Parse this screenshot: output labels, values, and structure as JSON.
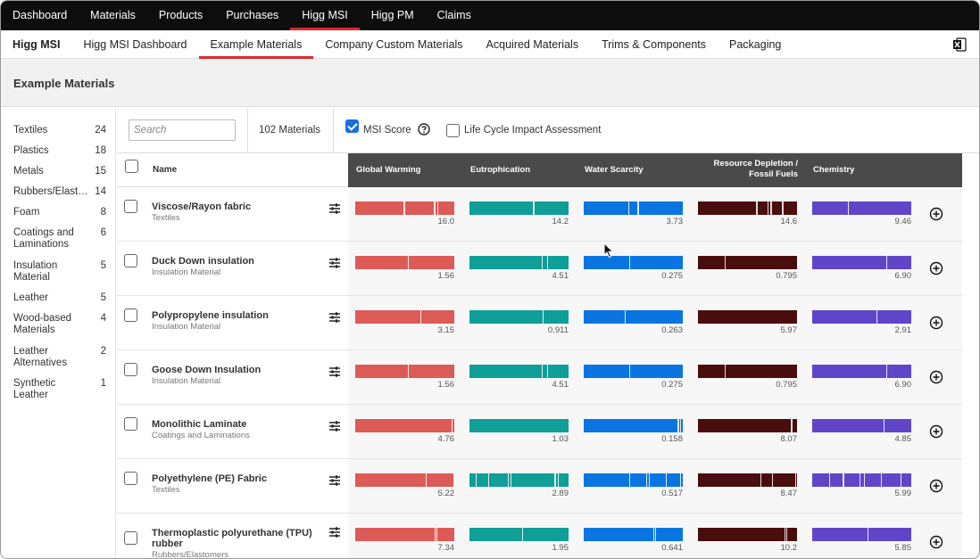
{
  "top_nav": [
    "Dashboard",
    "Materials",
    "Products",
    "Purchases",
    "Higg MSI",
    "Higg PM",
    "Claims"
  ],
  "sub_nav": {
    "brand": "Higg MSI",
    "items": [
      "Higg MSI Dashboard",
      "Example Materials",
      "Company Custom Materials",
      "Acquired Materials",
      "Trims & Components",
      "Packaging"
    ]
  },
  "page_title": "Example Materials",
  "categories": [
    {
      "label": "Textiles",
      "count": "24"
    },
    {
      "label": "Plastics",
      "count": "18"
    },
    {
      "label": "Metals",
      "count": "15"
    },
    {
      "label": "Rubbers/Elastomers",
      "count": "14"
    },
    {
      "label": "Foam",
      "count": "8"
    },
    {
      "label": "Coatings and Laminations",
      "count": "6"
    },
    {
      "label": "Insulation Material",
      "count": "5"
    },
    {
      "label": "Leather",
      "count": "5"
    },
    {
      "label": "Wood-based Materials",
      "count": "4"
    },
    {
      "label": "Leather Alternatives",
      "count": "2"
    },
    {
      "label": "Synthetic Leather",
      "count": "1"
    }
  ],
  "toolbar": {
    "search_placeholder": "Search",
    "material_count": "102 Materials",
    "msi_score_label": "MSI Score",
    "msi_score_checked": true,
    "lca_label": "Life Cycle Impact Assessment",
    "lca_checked": false
  },
  "table": {
    "name_header": "Name",
    "columns": [
      {
        "label": "Global Warming",
        "color": "#dd5b57"
      },
      {
        "label": "Eutrophication",
        "color": "#0f9e98"
      },
      {
        "label": "Water Scarcity",
        "color": "#0a75e0"
      },
      {
        "label": "Resource Depletion / Fossil Fuels",
        "color": "#4a0d0d"
      },
      {
        "label": "Chemistry",
        "color": "#6145c9"
      }
    ],
    "rows": [
      {
        "name": "Viscose/Rayon fabric",
        "category": "Textiles",
        "values": [
          "16.0",
          "14.2",
          "3.73",
          "14.6",
          "9.46"
        ],
        "ticks": [
          [
            0.49,
            0.79,
            0.8,
            0.83
          ],
          [
            0.64,
            0.65
          ],
          [
            0.45,
            0.54,
            0.55
          ],
          [
            0.59,
            0.7,
            0.73,
            0.74,
            0.85
          ],
          [
            0.36
          ]
        ]
      },
      {
        "name": "Duck Down insulation",
        "category": "Insulation Material",
        "values": [
          "1.56",
          "4.51",
          "0.275",
          "0.795",
          "6.90"
        ],
        "ticks": [
          [
            0.53
          ],
          [
            0.73,
            0.78
          ],
          [
            0.46
          ],
          [
            0.27
          ],
          [
            0.75
          ]
        ]
      },
      {
        "name": "Polypropylene insulation",
        "category": "Insulation Material",
        "values": [
          "3.15",
          "0.911",
          "0.263",
          "5.97",
          "2.91"
        ],
        "ticks": [
          [
            0.66
          ],
          [
            0.74
          ],
          [
            0.41
          ],
          [],
          [
            0.65
          ]
        ]
      },
      {
        "name": "Goose Down Insulation",
        "category": "Insulation Material",
        "values": [
          "1.56",
          "4.51",
          "0.275",
          "0.795",
          "6.90"
        ],
        "ticks": [
          [
            0.53
          ],
          [
            0.73,
            0.78
          ],
          [
            0.46
          ],
          [
            0.27
          ],
          [
            0.75
          ]
        ]
      },
      {
        "name": "Monolithic Laminate",
        "category": "Coatings and Laminations",
        "values": [
          "4.76",
          "1.03",
          "0.158",
          "8.07",
          "4.85"
        ],
        "ticks": [
          [
            0.97
          ],
          [],
          [
            0.95,
            0.97
          ],
          [
            0.94
          ],
          [
            0.72
          ]
        ]
      },
      {
        "name": "Polyethylene (PE) Fabric",
        "category": "Textiles",
        "values": [
          "5.22",
          "2.89",
          "0.517",
          "8.47",
          "5.99"
        ],
        "ticks": [
          [
            0.71,
            0.99
          ],
          [
            0.06,
            0.19,
            0.39,
            0.41,
            0.86,
            0.89
          ],
          [
            0.46,
            0.63,
            0.66,
            0.83,
            0.97
          ],
          [
            0.63,
            0.75,
            0.98
          ],
          [
            0.17,
            0.31,
            0.48,
            0.52,
            0.69,
            0.89
          ]
        ]
      },
      {
        "name": "Thermoplastic polyurethane (TPU) rubber",
        "category": "Rubbers/Elastomers",
        "values": [
          "7.34",
          "1.95",
          "0.641",
          "10.2",
          "5.85"
        ],
        "ticks": [
          [
            0.8,
            0.82
          ],
          [
            0.53
          ],
          [
            0.7,
            0.72
          ],
          [
            0.87,
            0.89
          ],
          [
            0.56
          ]
        ]
      }
    ]
  }
}
